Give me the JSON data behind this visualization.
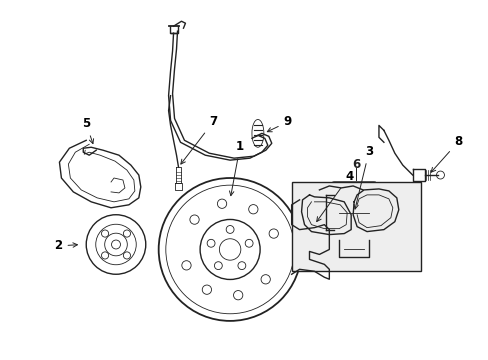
{
  "background_color": "#ffffff",
  "line_color": "#222222",
  "label_color": "#000000",
  "figsize": [
    4.89,
    3.6
  ],
  "dpi": 100,
  "lw": 1.0,
  "thin_lw": 0.6
}
